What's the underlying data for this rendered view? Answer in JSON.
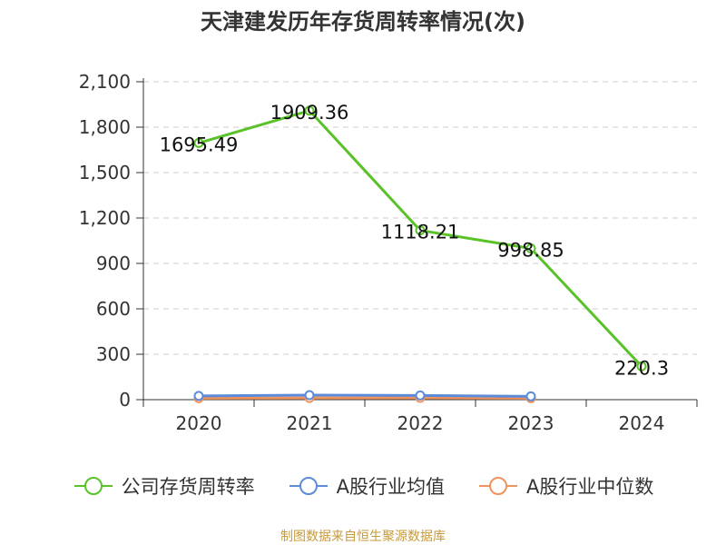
{
  "title": "天津建发历年存货周转率情况(次)",
  "source": "制图数据来自恒生聚源数据库",
  "chart_data": {
    "type": "line",
    "categories": [
      "2020",
      "2021",
      "2022",
      "2023",
      "2024"
    ],
    "ylim": [
      0,
      2100
    ],
    "yticks": [
      0,
      300,
      600,
      900,
      1200,
      1500,
      1800,
      2100
    ],
    "ytick_labels": [
      "0",
      "300",
      "600",
      "900",
      "1,200",
      "1,500",
      "1,800",
      "2,100"
    ],
    "grid": true,
    "legend_position": "bottom",
    "series": [
      {
        "name": "公司存货周转率",
        "color": "#5ac229",
        "values": [
          1695.49,
          1909.36,
          1118.21,
          998.85,
          220.3
        ],
        "labels": [
          "1695.49",
          "1909.36",
          "1118.21",
          "998.85",
          "220.3"
        ]
      },
      {
        "name": "A股行业均值",
        "color": "#5b8bd9",
        "values": [
          25,
          30,
          28,
          22,
          null
        ],
        "labels": []
      },
      {
        "name": "A股行业中位数",
        "color": "#f0935c",
        "values": [
          10,
          11,
          12,
          10,
          null
        ],
        "labels": []
      }
    ]
  }
}
